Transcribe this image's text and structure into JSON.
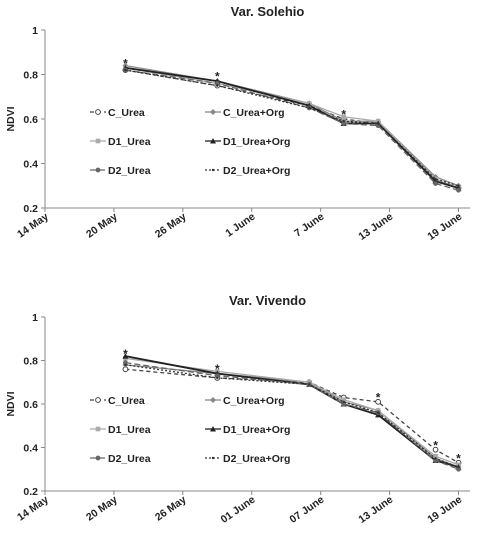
{
  "chart_data": [
    {
      "type": "line",
      "title": "Var. Solehio",
      "xlabel": "",
      "ylabel": "NDVI",
      "ylim": [
        0.2,
        1
      ],
      "yticks": [
        "0.2",
        "0.4",
        "0.6",
        "0.8",
        "1"
      ],
      "xlim": [
        "2014-05-14",
        "2014-06-20"
      ],
      "xticks": [
        {
          "date": "2014-05-14",
          "label": "14 May"
        },
        {
          "date": "2014-05-20",
          "label": "20 May"
        },
        {
          "date": "2014-05-26",
          "label": "26 May"
        },
        {
          "date": "2014-06-01",
          "label": "1 June"
        },
        {
          "date": "2014-06-07",
          "label": "7 June"
        },
        {
          "date": "2014-06-13",
          "label": "13 June"
        },
        {
          "date": "2014-06-19",
          "label": "19 June"
        }
      ],
      "grid": false,
      "legend_position": "middle-left",
      "x": [
        "2014-05-21",
        "2014-05-29",
        "2014-06-06",
        "2014-06-09",
        "2014-06-12",
        "2014-06-17",
        "2014-06-19"
      ],
      "series": [
        {
          "name": "C_Urea",
          "color": "#444444",
          "dash": "4,3",
          "marker": "circle-open",
          "values": [
            0.82,
            0.75,
            0.66,
            0.6,
            0.58,
            0.32,
            0.29
          ]
        },
        {
          "name": "C_Urea+Org",
          "color": "#888888",
          "dash": "",
          "marker": "diamond",
          "values": [
            0.84,
            0.77,
            0.67,
            0.59,
            0.59,
            0.34,
            0.3
          ]
        },
        {
          "name": "D1_Urea",
          "color": "#aaaaaa",
          "dash": "",
          "marker": "square",
          "values": [
            0.83,
            0.76,
            0.67,
            0.61,
            0.59,
            0.33,
            0.29
          ]
        },
        {
          "name": "D1_Urea+Org",
          "color": "#222222",
          "dash": "",
          "marker": "triangle",
          "values": [
            0.83,
            0.77,
            0.66,
            0.58,
            0.58,
            0.32,
            0.29
          ]
        },
        {
          "name": "D2_Urea",
          "color": "#666666",
          "dash": "6,3",
          "marker": "circle",
          "values": [
            0.82,
            0.76,
            0.65,
            0.58,
            0.57,
            0.31,
            0.28
          ]
        },
        {
          "name": "D2_Urea+Org",
          "color": "#333333",
          "dash": "2,2",
          "marker": "none",
          "values": [
            0.82,
            0.75,
            0.65,
            0.59,
            0.58,
            0.33,
            0.3
          ]
        }
      ],
      "annotations": [
        {
          "text": "*",
          "x": "2014-05-21",
          "y": 0.85
        },
        {
          "text": "*",
          "x": "2014-05-29",
          "y": 0.79
        },
        {
          "text": "*",
          "x": "2014-06-09",
          "y": 0.62
        }
      ]
    },
    {
      "type": "line",
      "title": "Var. Vivendo",
      "xlabel": "",
      "ylabel": "NDVI",
      "ylim": [
        0.2,
        1
      ],
      "yticks": [
        "0.2",
        "0.4",
        "0.6",
        "0.8",
        "1"
      ],
      "xlim": [
        "2014-05-14",
        "2014-06-20"
      ],
      "xticks": [
        {
          "date": "2014-05-14",
          "label": "14 May"
        },
        {
          "date": "2014-05-20",
          "label": "20 May"
        },
        {
          "date": "2014-05-26",
          "label": "26 May"
        },
        {
          "date": "2014-06-01",
          "label": "01 June"
        },
        {
          "date": "2014-06-07",
          "label": "07 June"
        },
        {
          "date": "2014-06-13",
          "label": "13 June"
        },
        {
          "date": "2014-06-19",
          "label": "19 June"
        }
      ],
      "grid": false,
      "legend_position": "middle-left",
      "x": [
        "2014-05-21",
        "2014-05-29",
        "2014-06-06",
        "2014-06-09",
        "2014-06-12",
        "2014-06-17",
        "2014-06-19"
      ],
      "series": [
        {
          "name": "C_Urea",
          "color": "#444444",
          "dash": "4,3",
          "marker": "circle-open",
          "values": [
            0.76,
            0.72,
            0.7,
            0.63,
            0.61,
            0.39,
            0.33
          ]
        },
        {
          "name": "C_Urea+Org",
          "color": "#888888",
          "dash": "",
          "marker": "diamond",
          "values": [
            0.78,
            0.74,
            0.7,
            0.61,
            0.57,
            0.35,
            0.31
          ]
        },
        {
          "name": "D1_Urea",
          "color": "#aaaaaa",
          "dash": "",
          "marker": "square",
          "values": [
            0.81,
            0.75,
            0.7,
            0.62,
            0.57,
            0.36,
            0.32
          ]
        },
        {
          "name": "D1_Urea+Org",
          "color": "#222222",
          "dash": "",
          "marker": "triangle",
          "values": [
            0.82,
            0.74,
            0.69,
            0.6,
            0.55,
            0.34,
            0.31
          ]
        },
        {
          "name": "D2_Urea",
          "color": "#666666",
          "dash": "6,3",
          "marker": "circle",
          "values": [
            0.79,
            0.73,
            0.69,
            0.6,
            0.56,
            0.34,
            0.3
          ]
        },
        {
          "name": "D2_Urea+Org",
          "color": "#333333",
          "dash": "2,2",
          "marker": "none",
          "values": [
            0.78,
            0.72,
            0.69,
            0.61,
            0.56,
            0.35,
            0.31
          ]
        }
      ],
      "annotations": [
        {
          "text": "*",
          "x": "2014-05-21",
          "y": 0.83
        },
        {
          "text": "*",
          "x": "2014-05-29",
          "y": 0.76
        },
        {
          "text": "*",
          "x": "2014-06-12",
          "y": 0.63
        },
        {
          "text": "*",
          "x": "2014-06-17",
          "y": 0.41
        },
        {
          "text": "*",
          "x": "2014-06-19",
          "y": 0.35
        }
      ]
    }
  ]
}
